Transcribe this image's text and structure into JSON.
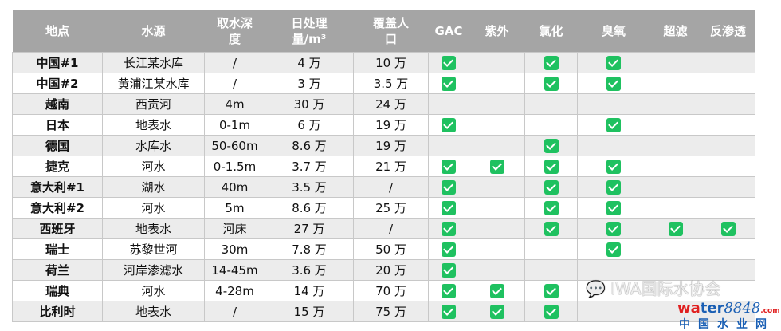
{
  "headers": [
    "地点",
    "水源",
    "取水深度",
    "日处理量/m³",
    "覆盖人口",
    "GAC",
    "紫外",
    "氯化",
    "臭氧",
    "超滤",
    "反渗透"
  ],
  "process_columns": [
    "GAC",
    "紫外",
    "氯化",
    "臭氧",
    "超滤",
    "反渗透"
  ],
  "rows": [
    {
      "loc": "中国#1",
      "source": "长江某水库",
      "depth": "/",
      "capacity": "4 万",
      "population": "10 万",
      "checks": [
        true,
        false,
        true,
        true,
        false,
        false
      ]
    },
    {
      "loc": "中国#2",
      "source": "黄浦江某水库",
      "depth": "/",
      "capacity": "3 万",
      "population": "3.5 万",
      "checks": [
        true,
        false,
        true,
        true,
        false,
        false
      ]
    },
    {
      "loc": "越南",
      "source": "西贡河",
      "depth": "4m",
      "capacity": "30 万",
      "population": "24 万",
      "checks": [
        false,
        false,
        false,
        false,
        false,
        false
      ]
    },
    {
      "loc": "日本",
      "source": "地表水",
      "depth": "0-1m",
      "capacity": "6 万",
      "population": "19 万",
      "checks": [
        true,
        false,
        false,
        true,
        false,
        false
      ]
    },
    {
      "loc": "德国",
      "source": "水库水",
      "depth": "50-60m",
      "capacity": "8.6 万",
      "population": "19 万",
      "checks": [
        false,
        false,
        true,
        false,
        false,
        false
      ]
    },
    {
      "loc": "捷克",
      "source": "河水",
      "depth": "0-1.5m",
      "capacity": "3.7 万",
      "population": "21 万",
      "checks": [
        true,
        true,
        true,
        true,
        false,
        false
      ]
    },
    {
      "loc": "意大利#1",
      "source": "湖水",
      "depth": "40m",
      "capacity": "3.5 万",
      "population": "/",
      "checks": [
        true,
        false,
        true,
        true,
        false,
        false
      ]
    },
    {
      "loc": "意大利#2",
      "source": "河水",
      "depth": "5m",
      "capacity": "8.6 万",
      "population": "25 万",
      "checks": [
        true,
        false,
        true,
        true,
        false,
        false
      ]
    },
    {
      "loc": "西班牙",
      "source": "地表水",
      "depth": "河床",
      "capacity": "27 万",
      "population": "/",
      "checks": [
        true,
        false,
        true,
        true,
        true,
        true
      ]
    },
    {
      "loc": "瑞士",
      "source": "苏黎世河",
      "depth": "30m",
      "capacity": "7.8 万",
      "population": "50 万",
      "checks": [
        true,
        false,
        false,
        true,
        false,
        false
      ]
    },
    {
      "loc": "荷兰",
      "source": "河岸渗滤水",
      "depth": "14-45m",
      "capacity": "3.6 万",
      "population": "20 万",
      "checks": [
        true,
        false,
        false,
        false,
        false,
        false
      ]
    },
    {
      "loc": "瑞典",
      "source": "河水",
      "depth": "4-28m",
      "capacity": "14 万",
      "population": "70 万",
      "checks": [
        true,
        true,
        true,
        false,
        false,
        false
      ]
    },
    {
      "loc": "比利时",
      "source": "地表水",
      "depth": "/",
      "capacity": "15 万",
      "population": "75 万",
      "checks": [
        true,
        true,
        true,
        false,
        false,
        false
      ]
    }
  ],
  "watermark": {
    "wechat": "IWA国际水协会",
    "site": "water8848",
    "site_suffix": ".com",
    "site_cn": "中国水业网"
  },
  "colors": {
    "header_bg": "#a5a5a5",
    "check_green": "#1fc160",
    "row_alt": "#ececec"
  },
  "icons": {
    "check": "checkbox-checked-icon"
  }
}
